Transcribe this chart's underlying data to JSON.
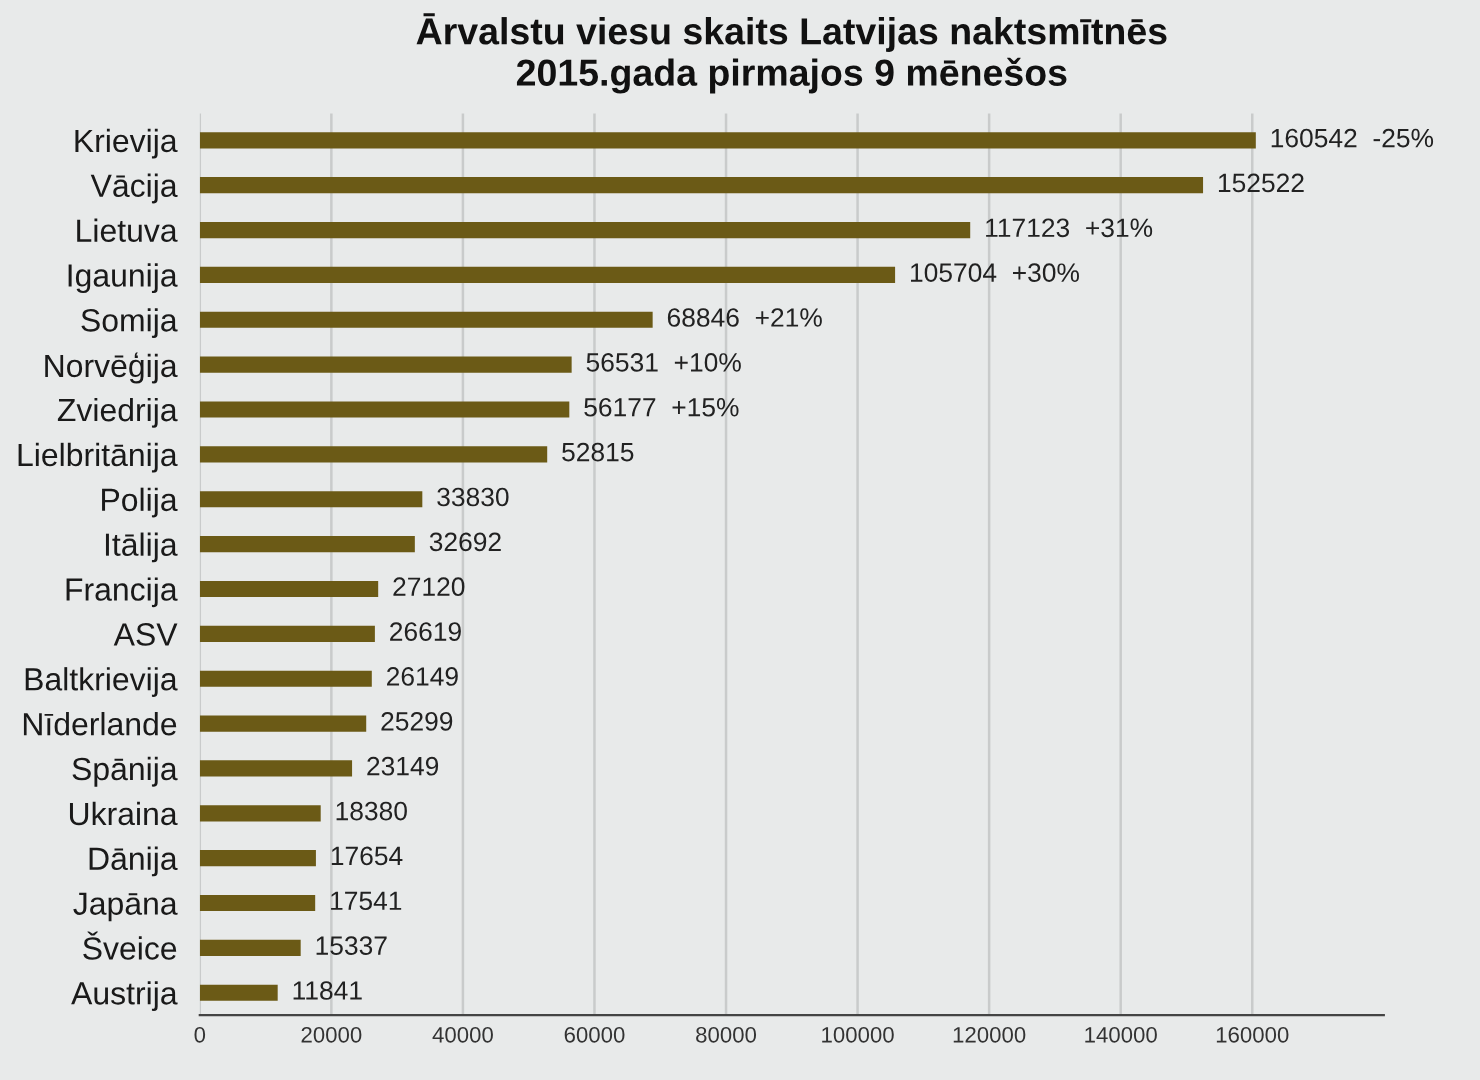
{
  "chart_data": {
    "type": "bar",
    "orientation": "horizontal",
    "title": "Ārvalstu viesu skaits Latvijas naktsmītnēs\n2015.gada pirmajos 9 mēnešos",
    "categories": [
      "Krievija",
      "Vācija",
      "Lietuva",
      "Igaunija",
      "Somija",
      "Norvēģija",
      "Zviedrija",
      "Lielbritānija",
      "Polija",
      "Itālija",
      "Francija",
      "ASV",
      "Baltkrievija",
      "Nīderlande",
      "Spānija",
      "Ukraina",
      "Dānija",
      "Japāna",
      "Šveice",
      "Austrija"
    ],
    "values": [
      160542,
      152522,
      117123,
      105704,
      68846,
      56531,
      56177,
      52815,
      33830,
      32692,
      27120,
      26619,
      26149,
      25299,
      23149,
      18380,
      17654,
      17541,
      15337,
      11841
    ],
    "value_labels": [
      "160542  -25%",
      "152522",
      "117123  +31%",
      "105704  +30%",
      "68846  +21%",
      "56531  +10%",
      "56177  +15%",
      "52815",
      "33830",
      "32692",
      "27120",
      "26619",
      "26149",
      "25299",
      "23149",
      "18380",
      "17654",
      "17541",
      "15337",
      "11841"
    ],
    "color": "#6b5a16",
    "xlim": [
      0,
      180000
    ],
    "xticks": [
      0,
      20000,
      40000,
      60000,
      80000,
      100000,
      120000,
      140000,
      160000
    ],
    "grid": "x"
  }
}
